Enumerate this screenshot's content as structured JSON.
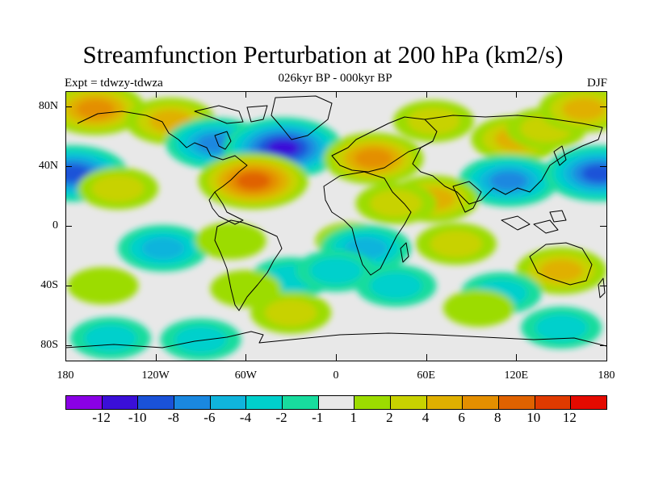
{
  "title": "Streamfunction Perturbation at 200 hPa (km2/s)",
  "subtitle": "026kyr BP - 000kyr BP",
  "left_label": "Expt = tdwzy-tdwza",
  "right_label": "DJF",
  "y_ticks": [
    "80N",
    "40N",
    "0",
    "40S",
    "80S"
  ],
  "x_ticks": [
    "180",
    "120W",
    "60W",
    "0",
    "60E",
    "120E",
    "180"
  ],
  "colorbar": {
    "colors": [
      "#8a00e6",
      "#3a0fd8",
      "#1a52d8",
      "#1a88e0",
      "#10b4dc",
      "#00d0cc",
      "#18dc9e",
      "#e8e8e8",
      "#9cdc00",
      "#c8d200",
      "#e0b000",
      "#e48f00",
      "#e06200",
      "#e03a00",
      "#e40a00"
    ],
    "labels": [
      "-12",
      "-10",
      "-8",
      "-6",
      "-4",
      "-2",
      "-1",
      "1",
      "2",
      "4",
      "6",
      "8",
      "10",
      "12"
    ]
  },
  "chart_data": {
    "type": "heatmap",
    "title": "Streamfunction Perturbation at 200 hPa (km2/s)",
    "subtitle": "026kyr BP - 000kyr BP",
    "season": "DJF",
    "experiment": "Expt = tdwzy-tdwza",
    "xlim": [
      -180,
      180
    ],
    "ylim": [
      -90,
      90
    ],
    "x_ticks": [
      -180,
      -120,
      -60,
      0,
      60,
      120,
      180
    ],
    "y_ticks": [
      80,
      40,
      0,
      -40,
      -80
    ],
    "levels": [
      -12,
      -10,
      -8,
      -6,
      -4,
      -2,
      -1,
      1,
      2,
      4,
      6,
      8,
      10,
      12
    ],
    "anomaly_centers": [
      {
        "lon": -160,
        "lat": 78,
        "value": 7
      },
      {
        "lon": -110,
        "lat": 70,
        "value": 5
      },
      {
        "lon": -80,
        "lat": 55,
        "value": -7
      },
      {
        "lon": -35,
        "lat": 52,
        "value": -11
      },
      {
        "lon": -55,
        "lat": 30,
        "value": 10
      },
      {
        "lon": 25,
        "lat": 45,
        "value": 8
      },
      {
        "lon": 65,
        "lat": 70,
        "value": 4
      },
      {
        "lon": 120,
        "lat": 58,
        "value": 5
      },
      {
        "lon": 140,
        "lat": 65,
        "value": 4
      },
      {
        "lon": 165,
        "lat": 78,
        "value": 5
      },
      {
        "lon": 115,
        "lat": 30,
        "value": -6
      },
      {
        "lon": 175,
        "lat": 35,
        "value": -9
      },
      {
        "lon": -175,
        "lat": 35,
        "value": -9
      },
      {
        "lon": -145,
        "lat": 25,
        "value": 3
      },
      {
        "lon": 65,
        "lat": 18,
        "value": 5
      },
      {
        "lon": 40,
        "lat": 15,
        "value": 3
      },
      {
        "lon": 80,
        "lat": -12,
        "value": 4
      },
      {
        "lon": -115,
        "lat": -15,
        "value": -4
      },
      {
        "lon": -70,
        "lat": -10,
        "value": 2
      },
      {
        "lon": 10,
        "lat": -10,
        "value": 2
      },
      {
        "lon": 20,
        "lat": -15,
        "value": -4
      },
      {
        "lon": -30,
        "lat": -35,
        "value": -3
      },
      {
        "lon": 0,
        "lat": -30,
        "value": -2
      },
      {
        "lon": 40,
        "lat": -40,
        "value": -3
      },
      {
        "lon": 150,
        "lat": -30,
        "value": 6
      },
      {
        "lon": 110,
        "lat": -45,
        "value": -2
      },
      {
        "lon": -155,
        "lat": -40,
        "value": 2
      },
      {
        "lon": -60,
        "lat": -42,
        "value": 2
      },
      {
        "lon": -30,
        "lat": -58,
        "value": 3
      },
      {
        "lon": 95,
        "lat": -55,
        "value": 2
      },
      {
        "lon": -150,
        "lat": -75,
        "value": -2
      },
      {
        "lon": -90,
        "lat": -76,
        "value": -2
      },
      {
        "lon": 150,
        "lat": -68,
        "value": -2
      }
    ]
  }
}
